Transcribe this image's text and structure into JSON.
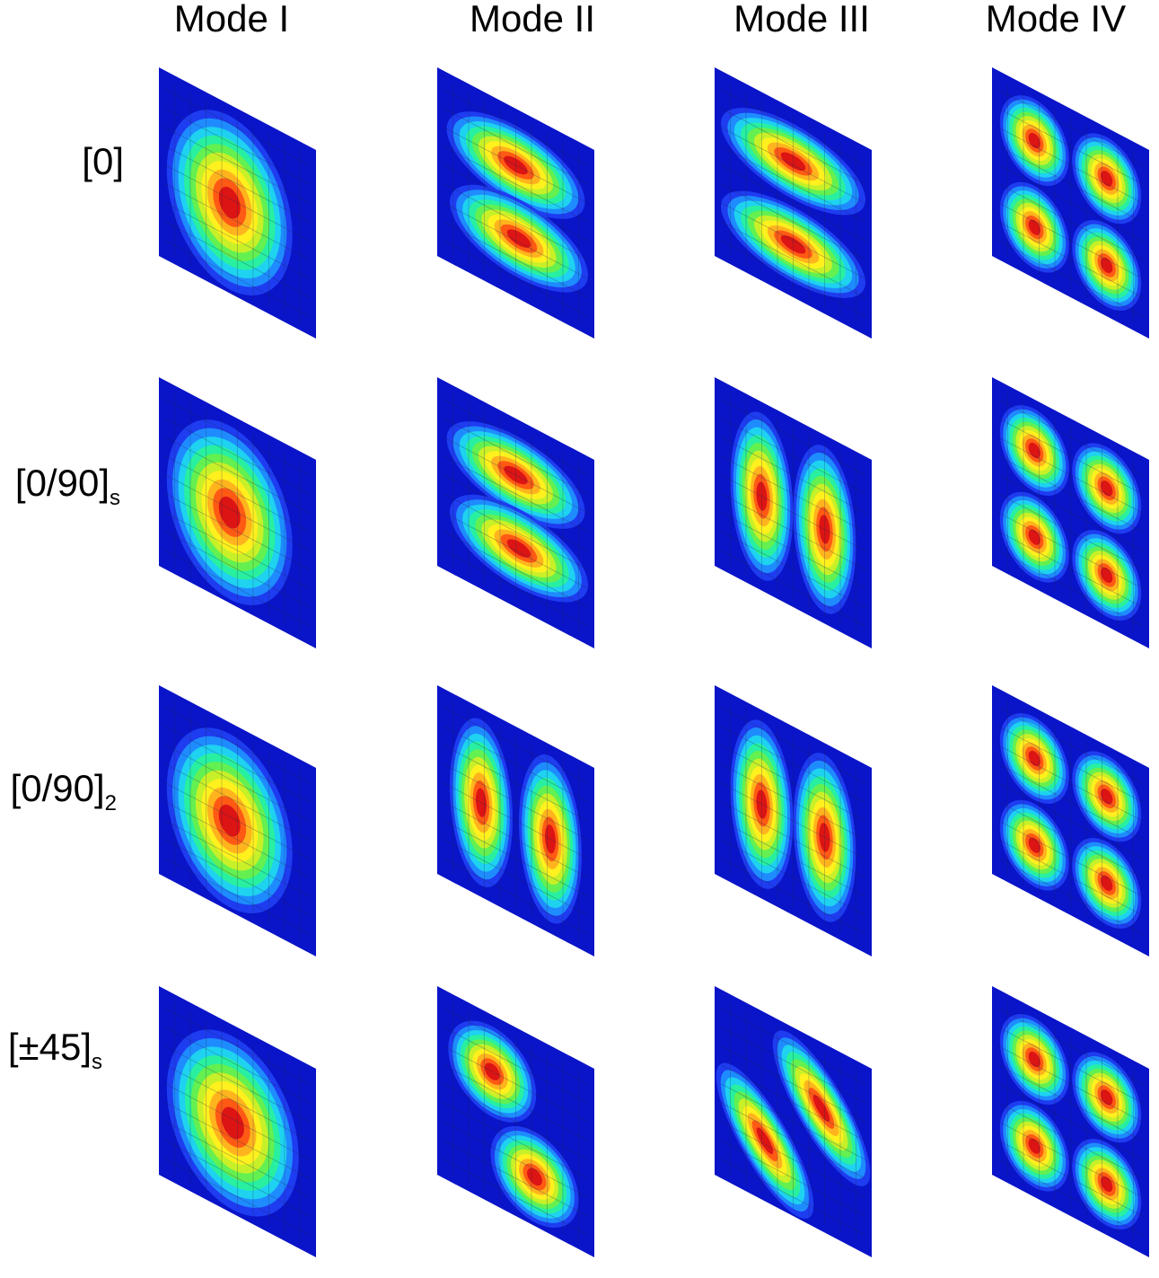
{
  "columns": [
    {
      "label": "Mode I"
    },
    {
      "label": "Mode II"
    },
    {
      "label": "Mode III"
    },
    {
      "label": "Mode IV"
    }
  ],
  "rows": [
    {
      "label_main": "[0]",
      "label_sub": ""
    },
    {
      "label_main": "[0/90]",
      "label_sub": "s"
    },
    {
      "label_main": "[0/90]",
      "label_sub": "2"
    },
    {
      "label_main": "[±45]",
      "label_sub": "s"
    }
  ],
  "colorscale": [
    "#0a14c8",
    "#1e3cf0",
    "#1e8cff",
    "#1ed2f0",
    "#28f0a0",
    "#64f050",
    "#c8f028",
    "#fff01e",
    "#ffb41e",
    "#ff5a14",
    "#dc1414"
  ],
  "plate_color": "#0a14c8",
  "modes": [
    [
      {
        "lobes": [
          {
            "u": 0.45,
            "v": 0.52,
            "a": 0.4,
            "b": 0.46,
            "rot": 0
          }
        ]
      },
      {
        "lobes": [
          {
            "u": 0.5,
            "v": 0.3,
            "a": 0.44,
            "b": 0.21,
            "rot": 0
          },
          {
            "u": 0.52,
            "v": 0.68,
            "a": 0.44,
            "b": 0.21,
            "rot": 0
          }
        ]
      },
      {
        "lobes": [
          {
            "u": 0.5,
            "v": 0.28,
            "a": 0.46,
            "b": 0.2,
            "rot": 0
          },
          {
            "u": 0.5,
            "v": 0.72,
            "a": 0.46,
            "b": 0.2,
            "rot": 0
          }
        ]
      },
      {
        "lobes": [
          {
            "u": 0.27,
            "v": 0.27,
            "a": 0.22,
            "b": 0.22,
            "rot": 0
          },
          {
            "u": 0.73,
            "v": 0.27,
            "a": 0.22,
            "b": 0.22,
            "rot": 0
          },
          {
            "u": 0.27,
            "v": 0.73,
            "a": 0.22,
            "b": 0.22,
            "rot": 0
          },
          {
            "u": 0.73,
            "v": 0.73,
            "a": 0.22,
            "b": 0.22,
            "rot": 0
          }
        ]
      }
    ],
    [
      {
        "lobes": [
          {
            "u": 0.45,
            "v": 0.52,
            "a": 0.4,
            "b": 0.46,
            "rot": 0
          }
        ]
      },
      {
        "lobes": [
          {
            "u": 0.5,
            "v": 0.3,
            "a": 0.44,
            "b": 0.21,
            "rot": 0
          },
          {
            "u": 0.52,
            "v": 0.68,
            "a": 0.44,
            "b": 0.21,
            "rot": 0
          }
        ]
      },
      {
        "lobes": [
          {
            "u": 0.3,
            "v": 0.5,
            "a": 0.2,
            "b": 0.44,
            "rot": 0
          },
          {
            "u": 0.7,
            "v": 0.5,
            "a": 0.2,
            "b": 0.44,
            "rot": 0
          }
        ]
      },
      {
        "lobes": [
          {
            "u": 0.27,
            "v": 0.27,
            "a": 0.22,
            "b": 0.22,
            "rot": 0
          },
          {
            "u": 0.73,
            "v": 0.27,
            "a": 0.22,
            "b": 0.22,
            "rot": 0
          },
          {
            "u": 0.27,
            "v": 0.73,
            "a": 0.22,
            "b": 0.22,
            "rot": 0
          },
          {
            "u": 0.73,
            "v": 0.73,
            "a": 0.22,
            "b": 0.22,
            "rot": 0
          }
        ]
      }
    ],
    [
      {
        "lobes": [
          {
            "u": 0.45,
            "v": 0.52,
            "a": 0.4,
            "b": 0.46,
            "rot": 0
          }
        ]
      },
      {
        "lobes": [
          {
            "u": 0.28,
            "v": 0.5,
            "a": 0.2,
            "b": 0.44,
            "rot": 0
          },
          {
            "u": 0.72,
            "v": 0.5,
            "a": 0.2,
            "b": 0.44,
            "rot": 0
          }
        ]
      },
      {
        "lobes": [
          {
            "u": 0.3,
            "v": 0.5,
            "a": 0.2,
            "b": 0.44,
            "rot": 0
          },
          {
            "u": 0.7,
            "v": 0.5,
            "a": 0.2,
            "b": 0.44,
            "rot": 0
          }
        ]
      },
      {
        "lobes": [
          {
            "u": 0.27,
            "v": 0.27,
            "a": 0.22,
            "b": 0.22,
            "rot": 0
          },
          {
            "u": 0.73,
            "v": 0.27,
            "a": 0.22,
            "b": 0.22,
            "rot": 0
          },
          {
            "u": 0.27,
            "v": 0.73,
            "a": 0.22,
            "b": 0.22,
            "rot": 0
          },
          {
            "u": 0.73,
            "v": 0.73,
            "a": 0.22,
            "b": 0.22,
            "rot": 0
          }
        ]
      }
    ],
    [
      {
        "lobes": [
          {
            "u": 0.47,
            "v": 0.52,
            "a": 0.42,
            "b": 0.46,
            "rot": 0
          }
        ]
      },
      {
        "lobes": [
          {
            "u": 0.35,
            "v": 0.3,
            "a": 0.28,
            "b": 0.24,
            "rot": 0
          },
          {
            "u": 0.62,
            "v": 0.74,
            "a": 0.28,
            "b": 0.24,
            "rot": 0
          }
        ]
      },
      {
        "lobes": [
          {
            "u": 0.68,
            "v": 0.35,
            "a": 0.4,
            "b": 0.18,
            "rot": 45
          },
          {
            "u": 0.32,
            "v": 0.68,
            "a": 0.4,
            "b": 0.18,
            "rot": 45
          }
        ]
      },
      {
        "lobes": [
          {
            "u": 0.27,
            "v": 0.27,
            "a": 0.22,
            "b": 0.22,
            "rot": 0
          },
          {
            "u": 0.73,
            "v": 0.27,
            "a": 0.22,
            "b": 0.22,
            "rot": 0
          },
          {
            "u": 0.27,
            "v": 0.73,
            "a": 0.22,
            "b": 0.22,
            "rot": 0
          },
          {
            "u": 0.73,
            "v": 0.73,
            "a": 0.22,
            "b": 0.22,
            "rot": 0
          }
        ]
      }
    ]
  ]
}
